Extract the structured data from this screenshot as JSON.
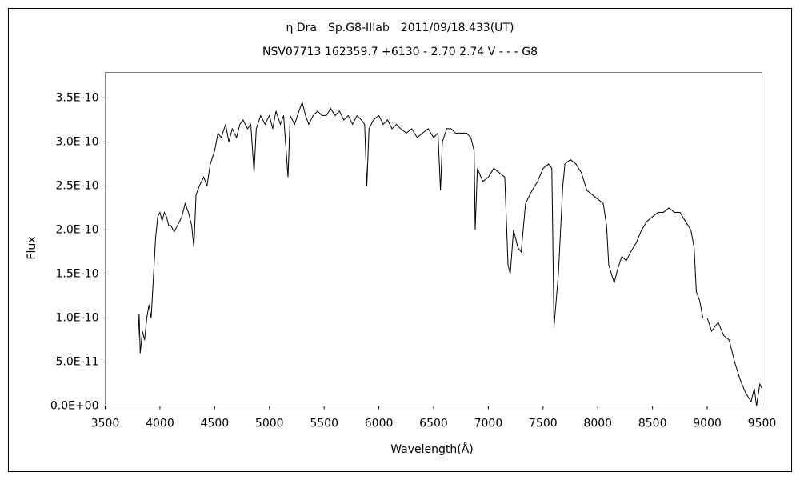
{
  "chart_data": {
    "type": "line",
    "title": "η Dra　Sp.G8-IIIab　2011/09/18.433(UT)",
    "subtitle": "NSV07713 162359.7 +6130 - 2.70 2.74 V - - - G8",
    "x_label": "Wavelength(Å)",
    "y_label": "Flux",
    "color": "#000000",
    "xlim": [
      3500,
      9500
    ],
    "xticks": [
      3500,
      4000,
      4500,
      5000,
      5500,
      6000,
      6500,
      7000,
      7500,
      8000,
      8500,
      9000,
      9500
    ],
    "ylim": [
      0,
      3.79e-10
    ],
    "yticks": [
      {
        "value": 0,
        "label": "0.0E+00"
      },
      {
        "value": 5e-11,
        "label": "5.0E-11"
      },
      {
        "value": 1e-10,
        "label": "1.0E-10"
      },
      {
        "value": 1.5e-10,
        "label": "1.5E-10"
      },
      {
        "value": 2e-10,
        "label": "2.0E-10"
      },
      {
        "value": 2.5e-10,
        "label": "2.5E-10"
      },
      {
        "value": 3e-10,
        "label": "3.0E-10"
      },
      {
        "value": 3.5e-10,
        "label": "3.5E-10"
      }
    ],
    "x": [
      3800,
      3810,
      3820,
      3840,
      3860,
      3880,
      3900,
      3920,
      3940,
      3960,
      3980,
      4000,
      4020,
      4040,
      4060,
      4080,
      4100,
      4130,
      4160,
      4200,
      4230,
      4260,
      4290,
      4310,
      4330,
      4360,
      4400,
      4430,
      4460,
      4500,
      4530,
      4560,
      4600,
      4630,
      4660,
      4700,
      4730,
      4760,
      4800,
      4830,
      4860,
      4880,
      4920,
      4960,
      5000,
      5030,
      5060,
      5100,
      5130,
      5170,
      5190,
      5230,
      5270,
      5300,
      5330,
      5360,
      5400,
      5440,
      5480,
      5520,
      5560,
      5600,
      5640,
      5680,
      5720,
      5760,
      5800,
      5840,
      5870,
      5890,
      5910,
      5950,
      6000,
      6040,
      6080,
      6120,
      6160,
      6200,
      6250,
      6300,
      6350,
      6400,
      6450,
      6500,
      6540,
      6563,
      6580,
      6620,
      6660,
      6700,
      6750,
      6800,
      6840,
      6870,
      6880,
      6900,
      6950,
      7000,
      7050,
      7100,
      7150,
      7180,
      7200,
      7230,
      7270,
      7300,
      7340,
      7400,
      7450,
      7500,
      7550,
      7580,
      7600,
      7620,
      7640,
      7680,
      7700,
      7750,
      7800,
      7850,
      7900,
      7950,
      8000,
      8050,
      8080,
      8100,
      8150,
      8180,
      8220,
      8260,
      8300,
      8350,
      8400,
      8450,
      8500,
      8550,
      8600,
      8650,
      8700,
      8750,
      8800,
      8850,
      8880,
      8900,
      8930,
      8960,
      9000,
      9040,
      9100,
      9150,
      9200,
      9250,
      9300,
      9350,
      9400,
      9430,
      9450,
      9480,
      9500
    ],
    "values": [
      7.5e-11,
      1.05e-10,
      6e-11,
      8.5e-11,
      7.5e-11,
      1e-10,
      1.15e-10,
      1e-10,
      1.45e-10,
      1.9e-10,
      2.15e-10,
      2.2e-10,
      2.1e-10,
      2.2e-10,
      2.15e-10,
      2.05e-10,
      2.05e-10,
      1.98e-10,
      2.05e-10,
      2.15e-10,
      2.3e-10,
      2.2e-10,
      2.05e-10,
      1.8e-10,
      2.4e-10,
      2.5e-10,
      2.6e-10,
      2.5e-10,
      2.75e-10,
      2.9e-10,
      3.1e-10,
      3.05e-10,
      3.2e-10,
      3e-10,
      3.15e-10,
      3.05e-10,
      3.2e-10,
      3.25e-10,
      3.15e-10,
      3.2e-10,
      2.65e-10,
      3.15e-10,
      3.3e-10,
      3.2e-10,
      3.3e-10,
      3.15e-10,
      3.35e-10,
      3.2e-10,
      3.3e-10,
      2.6e-10,
      3.3e-10,
      3.2e-10,
      3.35e-10,
      3.45e-10,
      3.3e-10,
      3.2e-10,
      3.3e-10,
      3.35e-10,
      3.3e-10,
      3.3e-10,
      3.38e-10,
      3.3e-10,
      3.35e-10,
      3.25e-10,
      3.3e-10,
      3.2e-10,
      3.3e-10,
      3.25e-10,
      3.2e-10,
      2.5e-10,
      3.15e-10,
      3.25e-10,
      3.3e-10,
      3.2e-10,
      3.25e-10,
      3.15e-10,
      3.2e-10,
      3.15e-10,
      3.1e-10,
      3.15e-10,
      3.05e-10,
      3.1e-10,
      3.15e-10,
      3.05e-10,
      3.1e-10,
      2.45e-10,
      3e-10,
      3.15e-10,
      3.15e-10,
      3.1e-10,
      3.1e-10,
      3.1e-10,
      3.05e-10,
      2.9e-10,
      2e-10,
      2.7e-10,
      2.55e-10,
      2.6e-10,
      2.7e-10,
      2.65e-10,
      2.6e-10,
      1.6e-10,
      1.5e-10,
      2e-10,
      1.8e-10,
      1.75e-10,
      2.3e-10,
      2.45e-10,
      2.55e-10,
      2.7e-10,
      2.75e-10,
      2.7e-10,
      9e-11,
      1.2e-10,
      1.5e-10,
      2.5e-10,
      2.75e-10,
      2.8e-10,
      2.75e-10,
      2.65e-10,
      2.45e-10,
      2.4e-10,
      2.35e-10,
      2.3e-10,
      2.05e-10,
      1.6e-10,
      1.4e-10,
      1.55e-10,
      1.7e-10,
      1.65e-10,
      1.75e-10,
      1.85e-10,
      2e-10,
      2.1e-10,
      2.15e-10,
      2.2e-10,
      2.2e-10,
      2.25e-10,
      2.2e-10,
      2.2e-10,
      2.1e-10,
      2e-10,
      1.8e-10,
      1.3e-10,
      1.2e-10,
      1e-10,
      1e-10,
      8.5e-11,
      9.5e-11,
      8e-11,
      7.5e-11,
      5e-11,
      3e-11,
      1.5e-11,
      5e-12,
      2e-11,
      0,
      2.5e-11,
      2e-11
    ]
  }
}
